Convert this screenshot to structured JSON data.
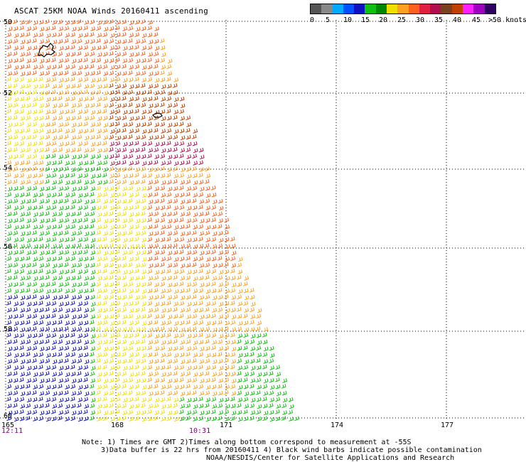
{
  "title": "ASCAT 25KM NOAA Winds 20160411 ascending",
  "legend": {
    "colors": [
      "#555555",
      "#888888",
      "#00aaff",
      "#0050ff",
      "#1010c0",
      "#10c010",
      "#008800",
      "#f0e000",
      "#ffa020",
      "#ff6020",
      "#e02040",
      "#b01050",
      "#7a4020",
      "#c04000",
      "#ff20ff",
      "#a000c0",
      "#300060"
    ],
    "labels": [
      "0",
      "5",
      "10",
      "15",
      "20",
      "25",
      "30",
      "35",
      "40",
      "45",
      ">50 knots"
    ]
  },
  "lat_labels": [
    "50",
    "52",
    "54",
    "56",
    "58",
    "60"
  ],
  "lon_labels": [
    "165",
    "168",
    "171",
    "174",
    "177"
  ],
  "time_labels": [
    "12:11",
    "10:31"
  ],
  "notes": [
    "Note: 1) Times are GMT 2)Times along bottom correspond to measurement at -55S",
    "3)Data buffer is 22 hrs from 20160411 4) Black wind barbs indicate possible contamination",
    "NOAA/NESDIS/Center for Satellite Applications and Research"
  ]
}
